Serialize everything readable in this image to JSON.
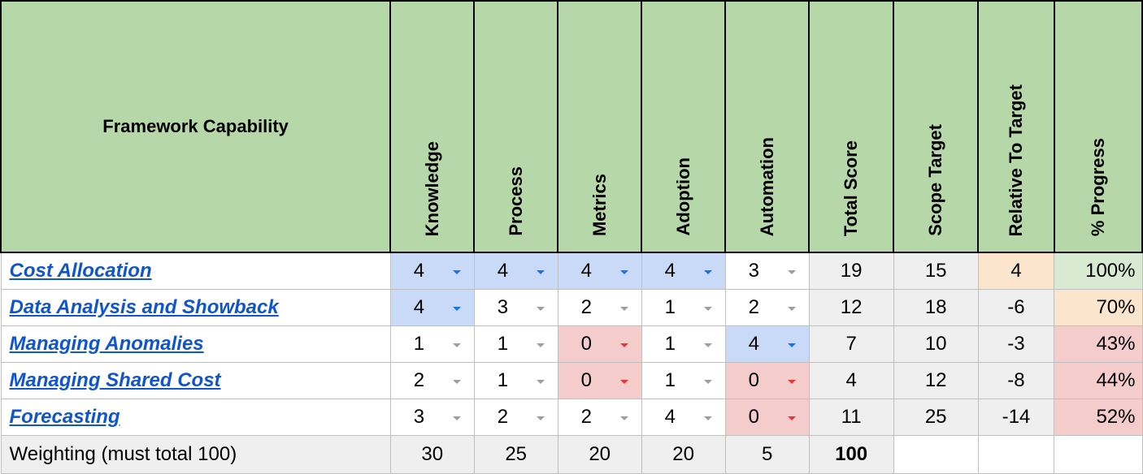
{
  "header": {
    "capability": "Framework Capability",
    "columns": [
      "Knowledge",
      "Process",
      "Metrics",
      "Adoption",
      "Automation",
      "Total Score",
      "Scope Target",
      "Relative To Target",
      "% Progress"
    ]
  },
  "rows": [
    {
      "name": "Cost Allocation",
      "knowledge": "4",
      "process": "4",
      "metrics": "4",
      "adoption": "4",
      "automation": "3",
      "total": "19",
      "scope": "15",
      "relative": "4",
      "progress": "100%"
    },
    {
      "name": "Data Analysis and Showback",
      "knowledge": "4",
      "process": "3",
      "metrics": "2",
      "adoption": "1",
      "automation": "2",
      "total": "12",
      "scope": "18",
      "relative": "-6",
      "progress": "70%"
    },
    {
      "name": "Managing Anomalies",
      "knowledge": "1",
      "process": "1",
      "metrics": "0",
      "adoption": "1",
      "automation": "4",
      "total": "7",
      "scope": "10",
      "relative": "-3",
      "progress": "43%"
    },
    {
      "name": "Managing Shared Cost",
      "knowledge": "2",
      "process": "1",
      "metrics": "0",
      "adoption": "1",
      "automation": "0",
      "total": "4",
      "scope": "12",
      "relative": "-8",
      "progress": "44%"
    },
    {
      "name": "Forecasting",
      "knowledge": "3",
      "process": "2",
      "metrics": "2",
      "adoption": "4",
      "automation": "0",
      "total": "11",
      "scope": "25",
      "relative": "-14",
      "progress": "52%"
    }
  ],
  "weighting": {
    "label": "Weighting (must total 100)",
    "knowledge": "30",
    "process": "25",
    "metrics": "20",
    "adoption": "20",
    "automation": "5",
    "total": "100"
  },
  "colors": {
    "header_green": "#b6d7a8",
    "cell_blue": "#c9daf8",
    "cell_red": "#f4cccc",
    "cell_peach": "#fce5cd",
    "cell_green": "#d9ead3",
    "link_blue": "#1155cc"
  },
  "icons": {
    "dropdown": "chevron-down-icon"
  }
}
